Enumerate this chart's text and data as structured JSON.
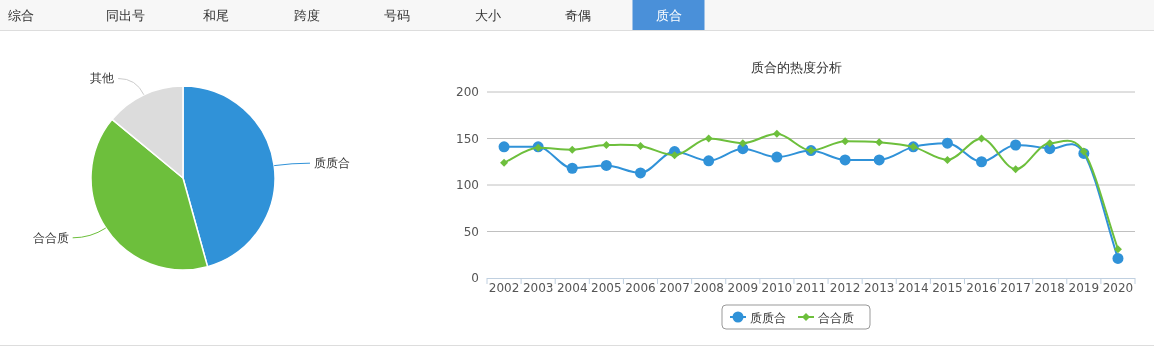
{
  "chart_data": [
    {
      "type": "other",
      "annotations": [
        "综合",
        "同出号",
        "和尾",
        "跨度",
        "号码",
        "大小",
        "奇偶",
        "质合"
      ]
    },
    {
      "type": "pie",
      "categories": [
        "质质合",
        "合合质",
        "其他"
      ],
      "values": [
        45.7,
        40.3,
        14.0
      ],
      "colors": [
        "#3092d8",
        "#6dbf3c",
        "#dcdcdc"
      ]
    },
    {
      "type": "line",
      "title": "质合的热度分析",
      "categories": [
        "2002",
        "2003",
        "2004",
        "2005",
        "2006",
        "2007",
        "2008",
        "2009",
        "2010",
        "2011",
        "2012",
        "2013",
        "2014",
        "2015",
        "2016",
        "2017",
        "2018",
        "2019",
        "2020"
      ],
      "series": [
        {
          "name": "质质合",
          "color": "#3092d8",
          "marker": "circle",
          "values": [
            141,
            141,
            118,
            121,
            113,
            136,
            126,
            139,
            130,
            137,
            127,
            127,
            141,
            145,
            125,
            143,
            139,
            134,
            21
          ]
        },
        {
          "name": "合合质",
          "color": "#6dbf3c",
          "marker": "diamond",
          "values": [
            124,
            140,
            138,
            143,
            142,
            132,
            150,
            145,
            155,
            137,
            147,
            146,
            141,
            127,
            150,
            117,
            145,
            136,
            31
          ]
        }
      ],
      "ylim": [
        0,
        200
      ],
      "yticks": [
        0,
        50,
        100,
        150,
        200
      ],
      "grid": "y",
      "legend": "bottom",
      "line_style": "solid"
    }
  ]
}
